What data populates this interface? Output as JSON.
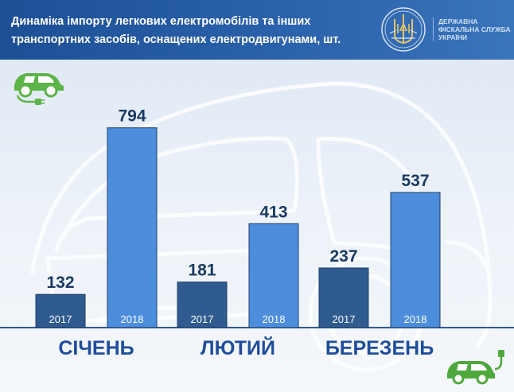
{
  "header": {
    "title": "Динаміка імпорту легкових електромобілів та інших транспортних засобів, оснащених електродвигунами, шт.",
    "agency_line1": "ДЕРЖАВНА",
    "agency_line2": "ФІСКАЛЬНА СЛУЖБА",
    "agency_line3": "УКРАЇНИ"
  },
  "colors": {
    "bar_2017": "#2f5b8f",
    "bar_2018": "#4d8edc",
    "header": "#1d4f95",
    "month_text": "#1f4d9a",
    "logo_green": "#4fa83d"
  },
  "icons": [
    "electric-car-plug-icon",
    "state-emblem-icon"
  ],
  "chart_data": {
    "type": "bar",
    "title": "Динаміка імпорту легкових електромобілів та інших транспортних засобів, оснащених електродвигунами, шт.",
    "categories": [
      "СІЧЕНЬ",
      "ЛЮТИЙ",
      "БЕРЕЗЕНЬ"
    ],
    "series": [
      {
        "name": "2017",
        "values": [
          132,
          181,
          237
        ]
      },
      {
        "name": "2018",
        "values": [
          794,
          413,
          537
        ]
      }
    ],
    "ylim": [
      0,
      850
    ],
    "grid": false,
    "legend": "none"
  }
}
